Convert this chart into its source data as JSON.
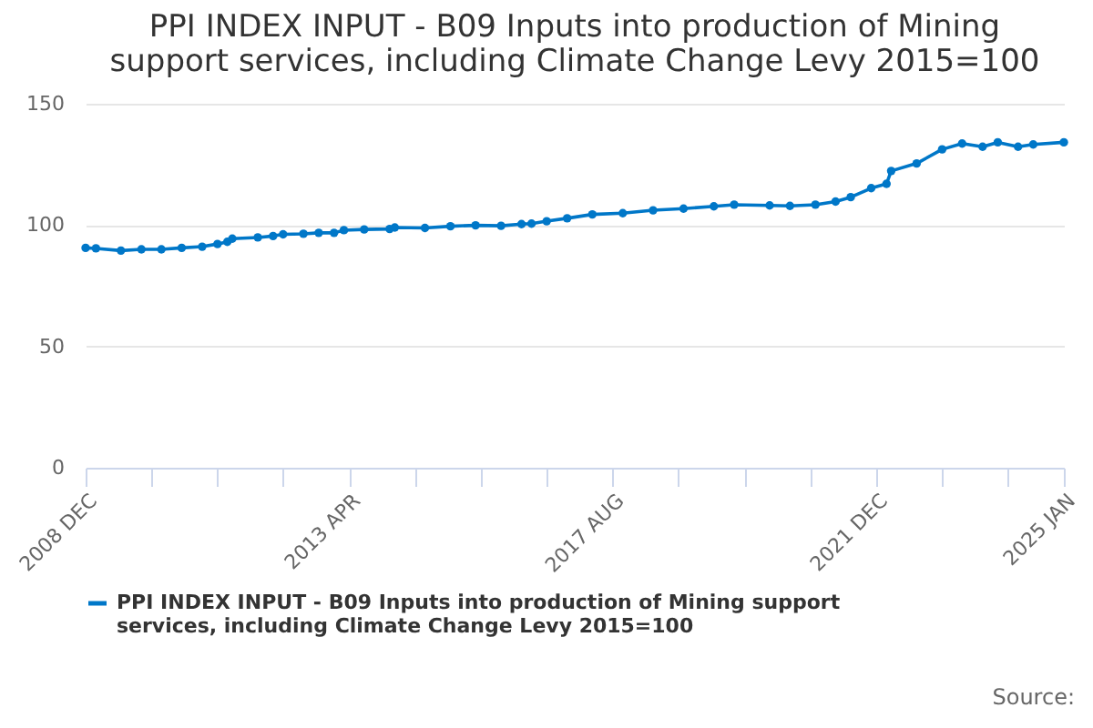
{
  "chart_data": {
    "type": "line",
    "title": "PPI INDEX INPUT - B09 Inputs into production of Mining support services, including Climate Change Levy 2015=100",
    "x": [
      "2008-12",
      "2009-02",
      "2009-07",
      "2009-11",
      "2010-03",
      "2010-07",
      "2010-11",
      "2011-02",
      "2011-04",
      "2011-05",
      "2011-10",
      "2012-01",
      "2012-03",
      "2012-07",
      "2012-10",
      "2013-01",
      "2013-03",
      "2013-07",
      "2013-12",
      "2014-01",
      "2014-07",
      "2014-12",
      "2015-05",
      "2015-10",
      "2016-02",
      "2016-04",
      "2016-07",
      "2016-11",
      "2017-04",
      "2017-10",
      "2018-04",
      "2018-10",
      "2019-04",
      "2019-08",
      "2020-03",
      "2020-07",
      "2020-12",
      "2021-04",
      "2021-07",
      "2021-11",
      "2022-02",
      "2022-03",
      "2022-08",
      "2023-01",
      "2023-05",
      "2023-09",
      "2023-12",
      "2024-04",
      "2024-07",
      "2025-01"
    ],
    "series": [
      {
        "name": "PPI INDEX INPUT - B09 Inputs into production of Mining support services, including Climate Change Levy 2015=100",
        "color": "#0077c8",
        "values": [
          90.6,
          90.4,
          89.5,
          90.0,
          90.0,
          90.6,
          91.1,
          92.2,
          93.1,
          94.4,
          94.9,
          95.5,
          96.2,
          96.4,
          96.8,
          96.8,
          97.9,
          98.2,
          98.4,
          99.0,
          98.8,
          99.5,
          99.9,
          99.7,
          100.4,
          100.6,
          101.6,
          102.8,
          104.4,
          104.9,
          106.1,
          106.8,
          107.7,
          108.4,
          108.1,
          107.9,
          108.4,
          109.7,
          111.5,
          115.2,
          117.0,
          122.3,
          125.4,
          131.2,
          133.6,
          132.3,
          134.1,
          132.3,
          133.2,
          134.1
        ]
      }
    ],
    "xlim": [
      "2008-12",
      "2025-01"
    ],
    "xticks": [
      {
        "value": "2008-12",
        "label": "2008 DEC"
      },
      {
        "value": "2010-01",
        "label": null
      },
      {
        "value": "2011-02",
        "label": null
      },
      {
        "value": "2012-03",
        "label": null
      },
      {
        "value": "2013-04",
        "label": "2013 APR"
      },
      {
        "value": "2014-05",
        "label": null
      },
      {
        "value": "2015-06",
        "label": null
      },
      {
        "value": "2016-07",
        "label": null
      },
      {
        "value": "2017-08",
        "label": "2017 AUG"
      },
      {
        "value": "2018-09",
        "label": null
      },
      {
        "value": "2019-10",
        "label": null
      },
      {
        "value": "2020-11",
        "label": null
      },
      {
        "value": "2021-12",
        "label": "2021 DEC"
      },
      {
        "value": "2023-01",
        "label": null
      },
      {
        "value": "2024-02",
        "label": null
      },
      {
        "value": "2025-01",
        "label": "2025 JAN"
      }
    ],
    "ylim": [
      0,
      150
    ],
    "yticks": [
      0,
      50,
      100,
      150
    ],
    "grid": "y",
    "legend": "bottom",
    "marker": "circle",
    "line_style": "solid",
    "annotations": [
      "Source:"
    ]
  }
}
